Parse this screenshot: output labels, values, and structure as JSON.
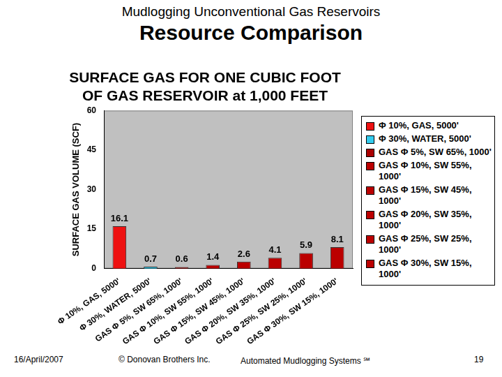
{
  "slide": {
    "header": "Mudlogging Unconventional Gas Reservoirs",
    "title": "Resource Comparison",
    "footer": [
      "16/April/2007",
      "© Donovan Brothers Inc.",
      "Automated Mudlogging Systems ℠",
      "19"
    ]
  },
  "chart_data": {
    "type": "bar",
    "title": "SURFACE GAS FOR ONE CUBIC FOOT OF GAS RESERVOIR at 1,000 FEET",
    "y_label": "SURFACE GAS VOLUME (SCF)",
    "categories": [
      "Φ 10%, GAS, 5000'",
      "Φ 30%, WATER, 5000'",
      "GAS Φ 5%, SW 65%, 1000'",
      "GAS Φ 10%, SW 55%, 1000'",
      "GAS Φ 15%, SW 45%, 1000'",
      "GAS Φ 20%, SW 35%, 1000'",
      "GAS Φ 25%, SW 25%, 1000'",
      "GAS Φ 30%, SW 15%, 1000'"
    ],
    "values": [
      16.1,
      0.7,
      0.6,
      1.4,
      2.6,
      4.1,
      5.9,
      8.1
    ],
    "colors": [
      "#ee1111",
      "#33ccee",
      "#aa0000",
      "#bb0000",
      "#bb0000",
      "#bb0000",
      "#bb0000",
      "#bb0000"
    ],
    "ylim": [
      0,
      60
    ],
    "yticks": [
      0,
      15,
      30,
      45,
      60
    ],
    "grid": false,
    "legend": "right",
    "data_labels": true
  }
}
